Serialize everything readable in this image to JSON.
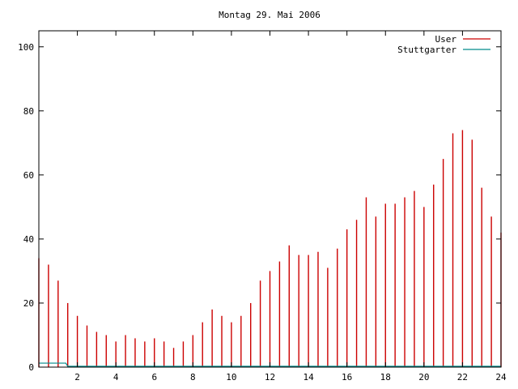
{
  "chart_data": {
    "type": "bar",
    "title": "Montag 29. Mai 2006",
    "xlabel": "",
    "ylabel": "",
    "xlim": [
      0,
      24
    ],
    "ylim": [
      0,
      105
    ],
    "x_ticks": [
      2,
      4,
      6,
      8,
      10,
      12,
      14,
      16,
      18,
      20,
      22,
      24
    ],
    "y_ticks": [
      0,
      20,
      40,
      60,
      80,
      100
    ],
    "grid": false,
    "legend_position": "top-right",
    "series": [
      {
        "name": "User",
        "color": "#cc0000",
        "x": [
          0.0,
          0.5,
          1.0,
          1.5,
          2.0,
          2.5,
          3.0,
          3.5,
          4.0,
          4.5,
          5.0,
          5.5,
          6.0,
          6.5,
          7.0,
          7.5,
          8.0,
          8.5,
          9.0,
          9.5,
          10.0,
          10.5,
          11.0,
          11.5,
          12.0,
          12.5,
          13.0,
          13.5,
          14.0,
          14.5,
          15.0,
          15.5,
          16.0,
          16.5,
          17.0,
          17.5,
          18.0,
          18.5,
          19.0,
          19.5,
          20.0,
          20.5,
          21.0,
          21.5,
          22.0,
          22.5,
          23.0,
          23.5,
          24.0
        ],
        "values": [
          34,
          32,
          27,
          20,
          16,
          13,
          11,
          10,
          8,
          10,
          9,
          8,
          9,
          8,
          6,
          8,
          10,
          14,
          18,
          16,
          14,
          16,
          20,
          27,
          30,
          33,
          38,
          35,
          35,
          36,
          31,
          37,
          43,
          46,
          53,
          47,
          51,
          51,
          53,
          55,
          50,
          57,
          65,
          73,
          74,
          71,
          56,
          47,
          42
        ]
      },
      {
        "name": "Stuttgarter",
        "color": "#008b8b",
        "x": [
          0.0,
          1.4,
          1.5,
          24.0
        ],
        "values": [
          1,
          1,
          0,
          0
        ]
      }
    ]
  }
}
